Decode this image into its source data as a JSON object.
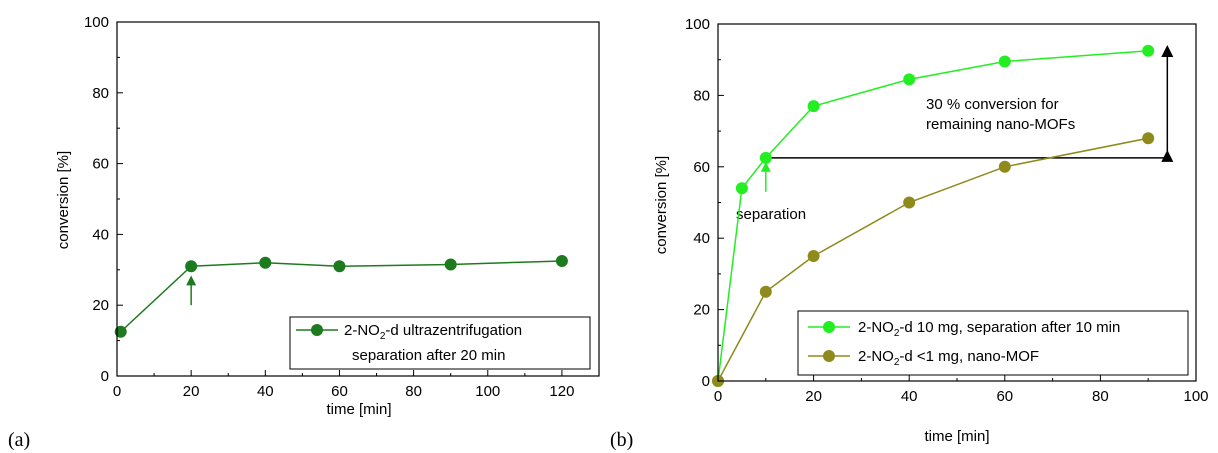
{
  "panels": [
    {
      "label": "(a)"
    },
    {
      "label": "(b)"
    }
  ],
  "chart_data": [
    {
      "type": "line",
      "xlabel": "time [min]",
      "ylabel": "conversion [%]",
      "xlim": [
        0,
        130
      ],
      "ylim": [
        0,
        100
      ],
      "xticks": [
        0,
        20,
        40,
        60,
        80,
        100,
        120
      ],
      "yticks": [
        0,
        20,
        40,
        60,
        80,
        100
      ],
      "grid": false,
      "legend_position": "bottom-right",
      "series": [
        {
          "name_prefix": "2-NO",
          "name_sub": "2",
          "name_suffix": "-d ultrazentrifugation",
          "name_line2": "separation after 20 min",
          "color": "#1e7a1e",
          "x": [
            1,
            20,
            40,
            60,
            90,
            120
          ],
          "y": [
            12.5,
            31,
            32,
            31,
            31.5,
            32.5
          ]
        }
      ],
      "annotations": [
        {
          "type": "arrow-up",
          "color": "#1e7a1e",
          "x": 20,
          "y_from": 20,
          "y_to": 27
        }
      ]
    },
    {
      "type": "line",
      "xlabel": "time [min]",
      "ylabel": "conversion [%]",
      "xlim": [
        0,
        100
      ],
      "ylim": [
        0,
        100
      ],
      "xticks": [
        0,
        20,
        40,
        60,
        80,
        100
      ],
      "yticks": [
        0,
        20,
        40,
        60,
        80,
        100
      ],
      "grid": false,
      "legend_position": "bottom-right",
      "series": [
        {
          "name_prefix": "2-NO",
          "name_sub": "2",
          "name_suffix": "-d 10 mg, separation after 10 min",
          "color": "#22ee22",
          "x": [
            0,
            5,
            10,
            20,
            40,
            60,
            90
          ],
          "y": [
            0,
            54,
            62.5,
            77,
            84.5,
            89.5,
            92.5
          ]
        },
        {
          "name_prefix": "2-NO",
          "name_sub": "2",
          "name_suffix": "-d <1 mg, nano-MOF",
          "color": "#8f8a1c",
          "x": [
            0,
            10,
            20,
            40,
            60,
            90
          ],
          "y": [
            0,
            25,
            35,
            50,
            60,
            68
          ]
        }
      ],
      "annotations": [
        {
          "type": "text",
          "text": "separation",
          "color": "#22ee22"
        },
        {
          "type": "arrow-up",
          "color": "#22ee22",
          "x": 10,
          "y_from": 53,
          "y_to": 60
        },
        {
          "type": "hline",
          "color": "#000000",
          "y": 62.5,
          "x_from": 10,
          "x_to": 94
        },
        {
          "type": "double-arrow",
          "color": "#000000",
          "x": 94,
          "y_from": 62.5,
          "y_to": 93
        },
        {
          "type": "text",
          "text": "30 % conversion for",
          "color": "#000000"
        },
        {
          "type": "text",
          "text": "remaining nano-MOFs",
          "color": "#000000"
        }
      ]
    }
  ]
}
